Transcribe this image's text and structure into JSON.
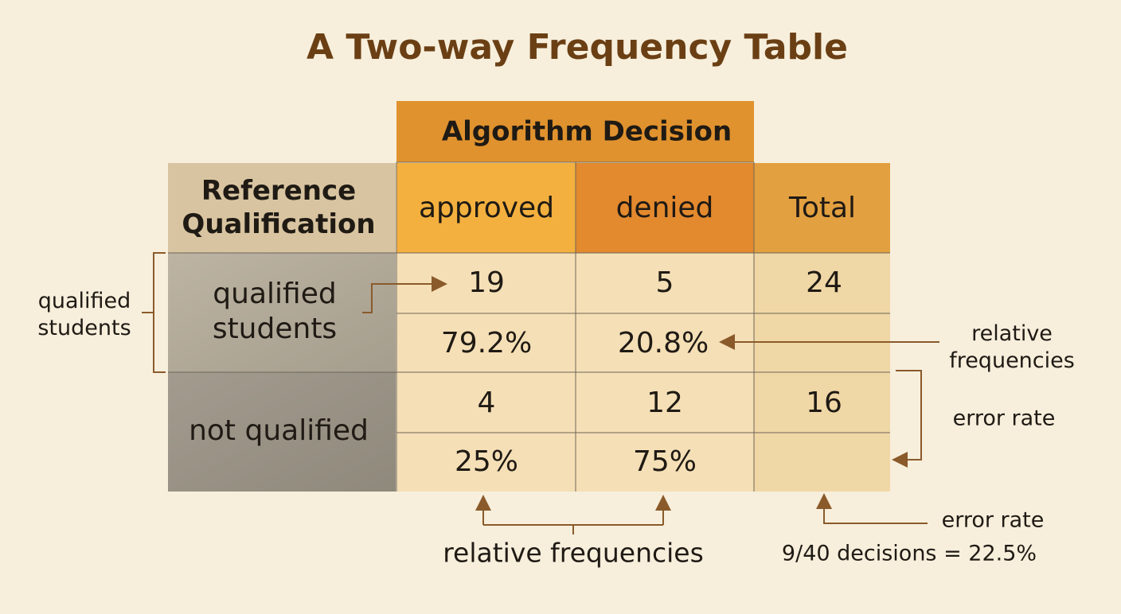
{
  "title": "A Two-way Frequency Table",
  "table": {
    "column_group": "Algorithm Decision",
    "row_header": "Reference Qualification",
    "columns": [
      "approved",
      "denied",
      "Total"
    ],
    "rows": [
      {
        "label": "qualified students",
        "counts": [
          "19",
          "5",
          "24"
        ],
        "relative": [
          "79.2%",
          "20.8%"
        ]
      },
      {
        "label": "not qualified",
        "counts": [
          "4",
          "12",
          "16"
        ],
        "relative": [
          "25%",
          "75%"
        ]
      }
    ]
  },
  "annotations": {
    "left": "qualified students",
    "right_top": "relative frequencies",
    "right_middle": "error rate",
    "bottom": "relative frequencies",
    "bottom_right": "error rate",
    "bottom_right_detail": "9/40 decisions = 22.5%"
  }
}
